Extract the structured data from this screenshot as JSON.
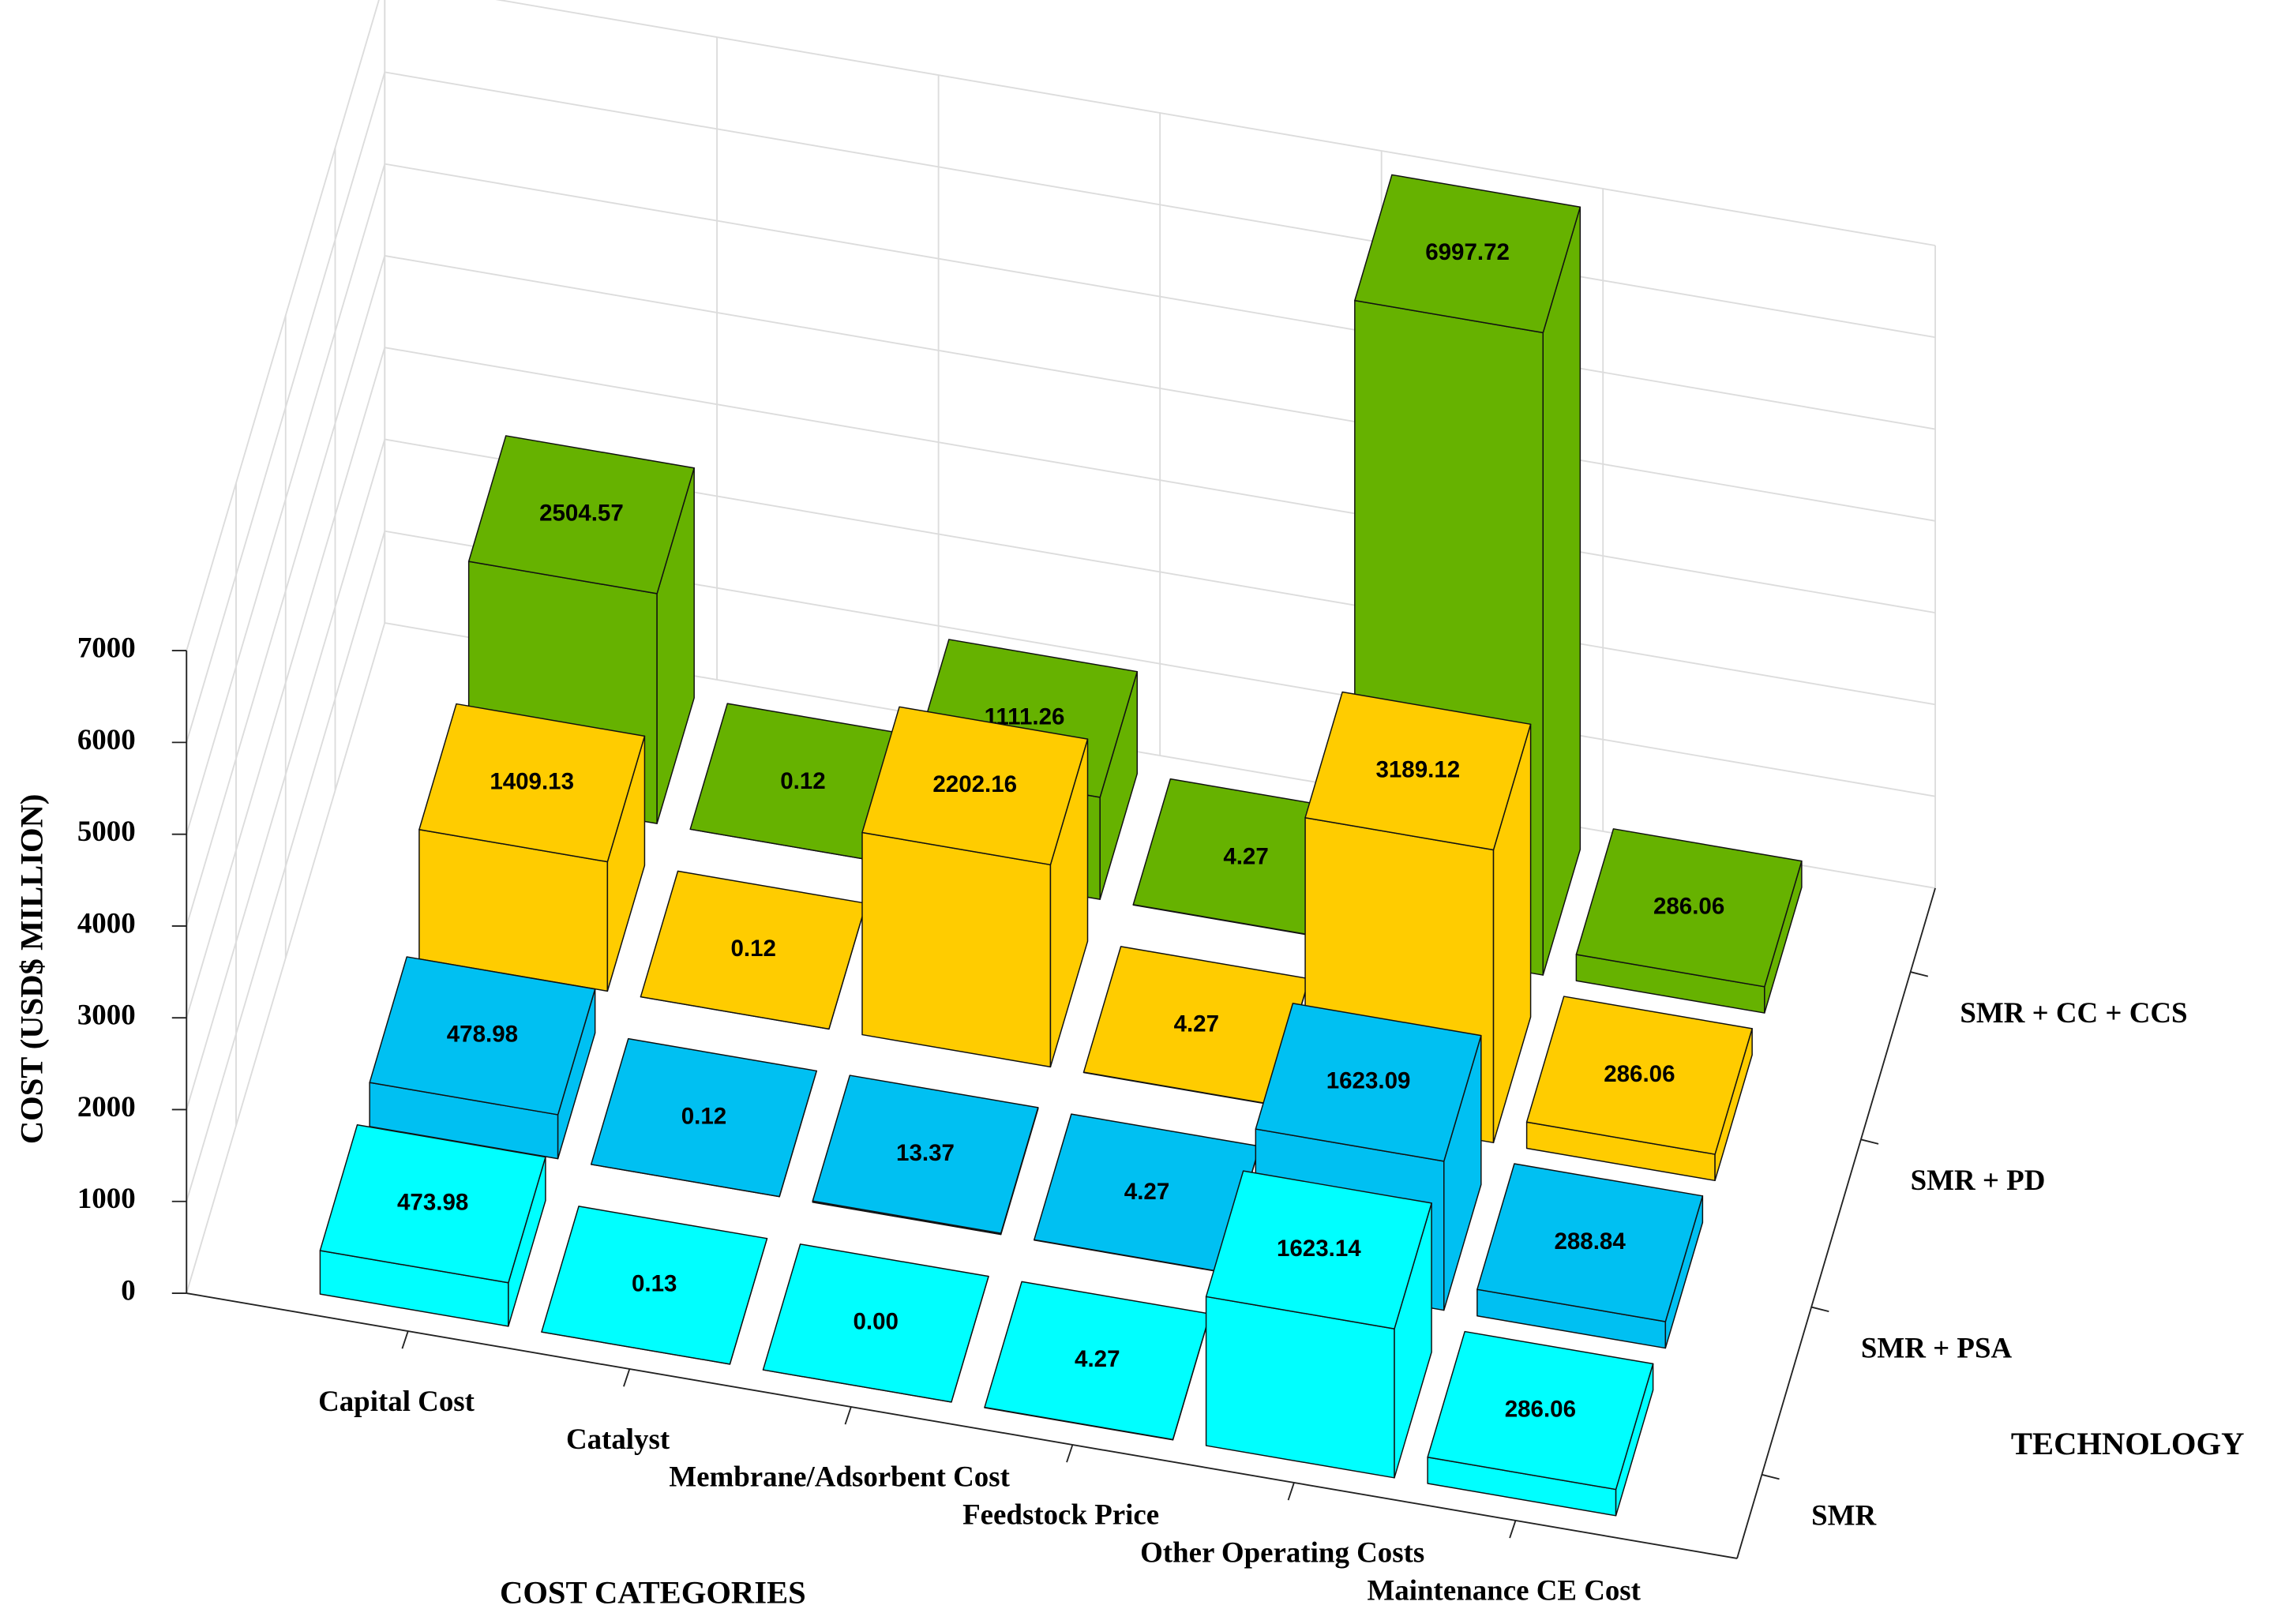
{
  "chart_data": {
    "type": "bar3d",
    "xlabel": "COST CATEGORIES",
    "ylabel": "TECHNOLOGY",
    "zlabel": "COST (USD$ MILLION)",
    "categories": [
      "Capital Cost",
      "Catalyst",
      "Membrane/Adsorbent Cost",
      "Feedstock Price",
      "Other Operating Costs",
      "Maintenance CE Cost"
    ],
    "series": [
      {
        "name": "SMR",
        "color": "#00ffff",
        "values": [
          473.98,
          0.13,
          0.0,
          4.27,
          1623.14,
          286.06
        ],
        "value_labels": [
          "473.98",
          "0.13",
          "0.00",
          "4.27",
          "1623.14",
          "286.06"
        ]
      },
      {
        "name": "SMR + PSA",
        "color": "#00c0f2",
        "values": [
          478.98,
          0.12,
          13.37,
          4.27,
          1623.09,
          288.84
        ]
      },
      {
        "name": "SMR + PD",
        "color": "#ffcc00",
        "values": [
          1409.13,
          0.12,
          2202.16,
          4.27,
          3189.12,
          286.06
        ]
      },
      {
        "name": "SMR + CC + CCS",
        "color": "#66b200",
        "values": [
          2504.57,
          0.12,
          1111.26,
          4.27,
          6997.72,
          286.06
        ]
      }
    ],
    "zlim": [
      0,
      7000
    ],
    "zticks": [
      0,
      1000,
      2000,
      3000,
      4000,
      5000,
      6000,
      7000
    ],
    "grid": true
  }
}
